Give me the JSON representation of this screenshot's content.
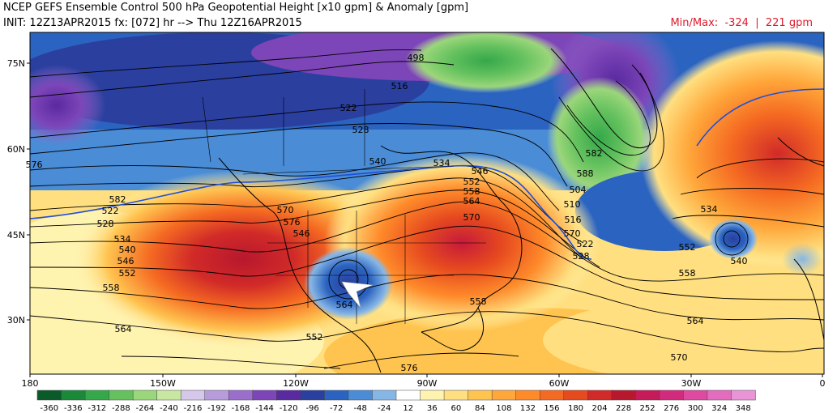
{
  "header": {
    "title": "NCEP GEFS Ensemble Control 500 hPa Geopotential Height [x10 gpm] & Anomaly [gpm]",
    "init_line": "INIT: 12Z13APR2015 fx: [072] hr --> Thu 12Z16APR2015",
    "minmax_label": "Min/Max:",
    "min_value": "-324",
    "max_value": "221 gpm"
  },
  "axes": {
    "lat_labels": [
      "75N",
      "60N",
      "45N",
      "30N"
    ],
    "lon_labels": [
      "180",
      "150W",
      "120W",
      "90W",
      "60W",
      "30W",
      "0"
    ]
  },
  "contour_labels": [
    "498",
    "516",
    "522",
    "528",
    "540",
    "534",
    "546",
    "552",
    "558",
    "564",
    "570",
    "576",
    "582",
    "588",
    "504",
    "510",
    "516",
    "522",
    "528",
    "534",
    "540",
    "552",
    "558",
    "564",
    "570",
    "576",
    "582",
    "522",
    "528",
    "534",
    "540",
    "546",
    "552",
    "558",
    "564",
    "570",
    "576",
    "546",
    "552",
    "558",
    "564",
    "570",
    "582",
    "576"
  ],
  "colorbar": {
    "ticks": [
      "-360",
      "-336",
      "-312",
      "-288",
      "-264",
      "-240",
      "-216",
      "-192",
      "-168",
      "-144",
      "-120",
      "-96",
      "-72",
      "-48",
      "-24",
      "12",
      "36",
      "60",
      "84",
      "108",
      "132",
      "156",
      "180",
      "204",
      "228",
      "252",
      "276",
      "300",
      "324",
      "348"
    ],
    "colors": [
      "#0b5a2a",
      "#1a8a3a",
      "#35a84a",
      "#64c15e",
      "#9ad67a",
      "#c8e7a0",
      "#d6c8ea",
      "#b79bdb",
      "#9a6fcc",
      "#7c45b8",
      "#5a2aa0",
      "#2b3f9f",
      "#2b63c0",
      "#4a8cd6",
      "#86b6e6",
      "#ffffff",
      "#fff3b0",
      "#ffdf80",
      "#ffc450",
      "#ffa73a",
      "#ff8a2a",
      "#f56a22",
      "#e64a1f",
      "#d12a28",
      "#b8182e",
      "#c61a5a",
      "#d42a7e",
      "#dd4aa0",
      "#e36cbf",
      "#ea94d8"
    ]
  },
  "icons": {
    "north_arrow": "north-arrow-icon"
  }
}
